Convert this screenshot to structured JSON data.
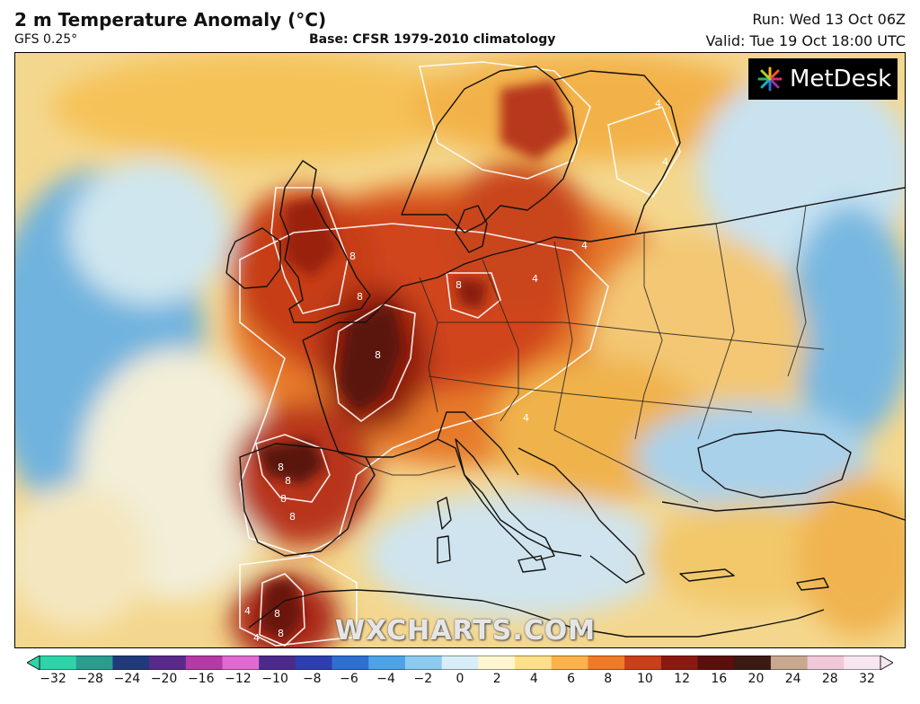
{
  "header": {
    "title": "2 m Temperature Anomaly (°C)",
    "model": "GFS 0.25°",
    "base": "Base: CFSR 1979-2010 climatology",
    "run": "Run: Wed 13 Oct 06Z",
    "valid": "Valid: Tue 19 Oct 18:00 UTC"
  },
  "logo": {
    "text": "MetDesk",
    "icon": "metdesk-burst-icon"
  },
  "watermark": "WXCHARTS.COM",
  "map": {
    "contour_labels": [
      "8",
      "8",
      "8",
      "8",
      "8",
      "8",
      "8",
      "8",
      "8",
      "8",
      "4",
      "4",
      "4",
      "4",
      "4",
      "4",
      "4"
    ],
    "colors": {
      "very_warm": "#5a1208",
      "warm_dark": "#9b1f0c",
      "warm": "#d9531b",
      "mild": "#f2a43a",
      "slight": "#f6d98a",
      "neutral": "#f4f0d8",
      "cool": "#b9dcef",
      "cold": "#5aa7d8",
      "coast": "#111111"
    }
  },
  "colorbar": {
    "ticks": [
      "−32",
      "−28",
      "−24",
      "−20",
      "−16",
      "−12",
      "−10",
      "−8",
      "−6",
      "−4",
      "−2",
      "0",
      "2",
      "4",
      "6",
      "8",
      "10",
      "12",
      "16",
      "20",
      "24",
      "28",
      "32"
    ],
    "colors": [
      "#2fd3a8",
      "#2a9d8f",
      "#203a7c",
      "#5a2a8a",
      "#b43aa6",
      "#e06ad0",
      "#4b2a8c",
      "#2d3fb0",
      "#2f6fd2",
      "#4ea2e6",
      "#8ccaf0",
      "#d7eef8",
      "#fff6d0",
      "#ffe08a",
      "#fbb24a",
      "#f07a28",
      "#c9401a",
      "#8a1a10",
      "#5a0f0c",
      "#3b1a12",
      "#c9a890",
      "#f0c8d8",
      "#f7e6f0"
    ]
  }
}
